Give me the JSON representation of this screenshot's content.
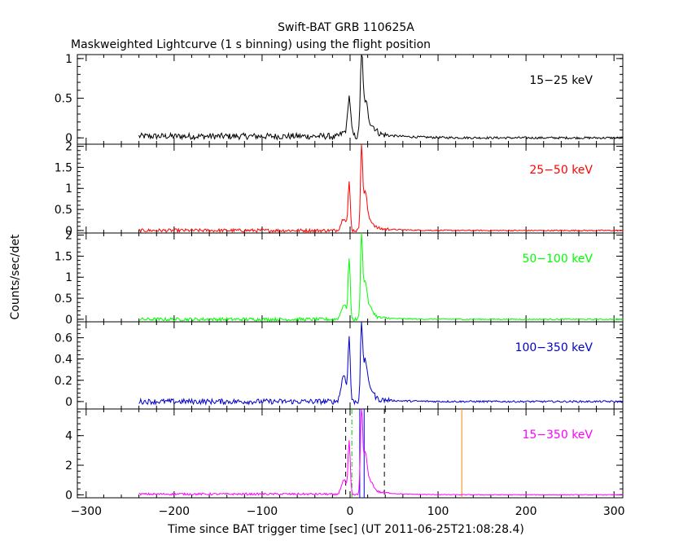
{
  "chart_data": {
    "type": "line",
    "title": "Swift-BAT GRB 110625A",
    "subtitle": "Maskweighted Lightcurve (1 s binning) using the flight position",
    "xlabel": "Time since BAT trigger time [sec] (UT 2011-06-25T21:08:28.4)",
    "ylabel": "Counts/sec/det",
    "xlim": [
      -310,
      310
    ],
    "x_ticks": [
      -300,
      -200,
      -100,
      0,
      100,
      200,
      300
    ],
    "x_tick_labels": [
      "−300",
      "−200",
      "−100",
      "0",
      "100",
      "200",
      "300"
    ],
    "grid": false,
    "panels": [
      {
        "band": "15−25 keV",
        "color": "#000000",
        "ylim": [
          -0.08,
          1.05
        ],
        "y_ticks": [
          0,
          0.5,
          1
        ],
        "y_tick_labels": [
          "0",
          "0.5",
          "1"
        ],
        "noise_level": 0.04,
        "pre_burst_offset": 0.02,
        "peaks": [
          [
            -1,
            0.45,
            1.6
          ],
          [
            -4,
            0.08,
            6
          ],
          [
            13,
            1.0,
            1.4
          ],
          [
            17,
            0.4,
            2.5
          ],
          [
            23,
            0.12,
            5
          ]
        ],
        "tail": [
          30,
          0.05,
          30
        ]
      },
      {
        "band": "25−50 keV",
        "color": "#ff0000",
        "ylim": [
          -0.06,
          2.05
        ],
        "y_ticks": [
          0,
          0.5,
          1,
          1.5,
          2
        ],
        "y_tick_labels": [
          "0",
          "0.5",
          "1",
          "1.5",
          "2"
        ],
        "noise_level": 0.04,
        "pre_burst_offset": 0.0,
        "peaks": [
          [
            -7,
            0.3,
            3
          ],
          [
            -1,
            1.1,
            1.2
          ],
          [
            13,
            1.95,
            1.2
          ],
          [
            17,
            0.85,
            2
          ],
          [
            22,
            0.2,
            4
          ]
        ],
        "tail": [
          30,
          0.05,
          25
        ]
      },
      {
        "band": "50−100 keV",
        "color": "#00ff00",
        "ylim": [
          -0.06,
          2.05
        ],
        "y_ticks": [
          0,
          0.5,
          1,
          1.5,
          2
        ],
        "y_tick_labels": [
          "0",
          "0.5",
          "1",
          "1.5",
          "2"
        ],
        "noise_level": 0.04,
        "pre_burst_offset": 0.0,
        "peaks": [
          [
            -7,
            0.35,
            3
          ],
          [
            -1,
            1.4,
            1.2
          ],
          [
            13,
            2.05,
            1.2
          ],
          [
            17,
            0.8,
            2
          ],
          [
            22,
            0.25,
            4
          ]
        ],
        "tail": [
          30,
          0.04,
          25
        ]
      },
      {
        "band": "100−350 keV",
        "color": "#0000cc",
        "ylim": [
          -0.07,
          0.75
        ],
        "y_ticks": [
          0,
          0.2,
          0.4,
          0.6
        ],
        "y_tick_labels": [
          "0",
          "0.2",
          "0.4",
          "0.6"
        ],
        "noise_level": 0.025,
        "pre_burst_offset": 0.0,
        "peaks": [
          [
            -7,
            0.25,
            3
          ],
          [
            -1,
            0.58,
            1.2
          ],
          [
            13,
            0.72,
            1.2
          ],
          [
            17,
            0.35,
            2
          ],
          [
            22,
            0.12,
            4
          ]
        ],
        "tail": [
          30,
          0.02,
          25
        ]
      },
      {
        "band": "15−350 keV",
        "color": "#ff00ff",
        "ylim": [
          -0.2,
          5.8
        ],
        "y_ticks": [
          0,
          2,
          4
        ],
        "y_tick_labels": [
          "0",
          "2",
          "4"
        ],
        "noise_level": 0.07,
        "pre_burst_offset": 0.05,
        "peaks": [
          [
            -7,
            1.0,
            3
          ],
          [
            -1,
            3.5,
            1.2
          ],
          [
            13,
            6.0,
            1.2
          ],
          [
            17,
            2.5,
            2
          ],
          [
            22,
            0.8,
            4
          ]
        ],
        "tail": [
          30,
          0.2,
          25
        ]
      }
    ],
    "data_start": -240,
    "data_end": 310,
    "markers": [
      {
        "x": -5,
        "color": "#000000",
        "style": "dashed"
      },
      {
        "x": 39,
        "color": "#000000",
        "style": "dashed"
      },
      {
        "x": 2,
        "color": "#00cc00",
        "style": "dash-dot"
      },
      {
        "x": 11,
        "color": "#0000ff",
        "style": "solid"
      },
      {
        "x": 16,
        "color": "#0000ff",
        "style": "solid"
      },
      {
        "x": 127,
        "color": "#ff8800",
        "style": "solid"
      }
    ]
  }
}
